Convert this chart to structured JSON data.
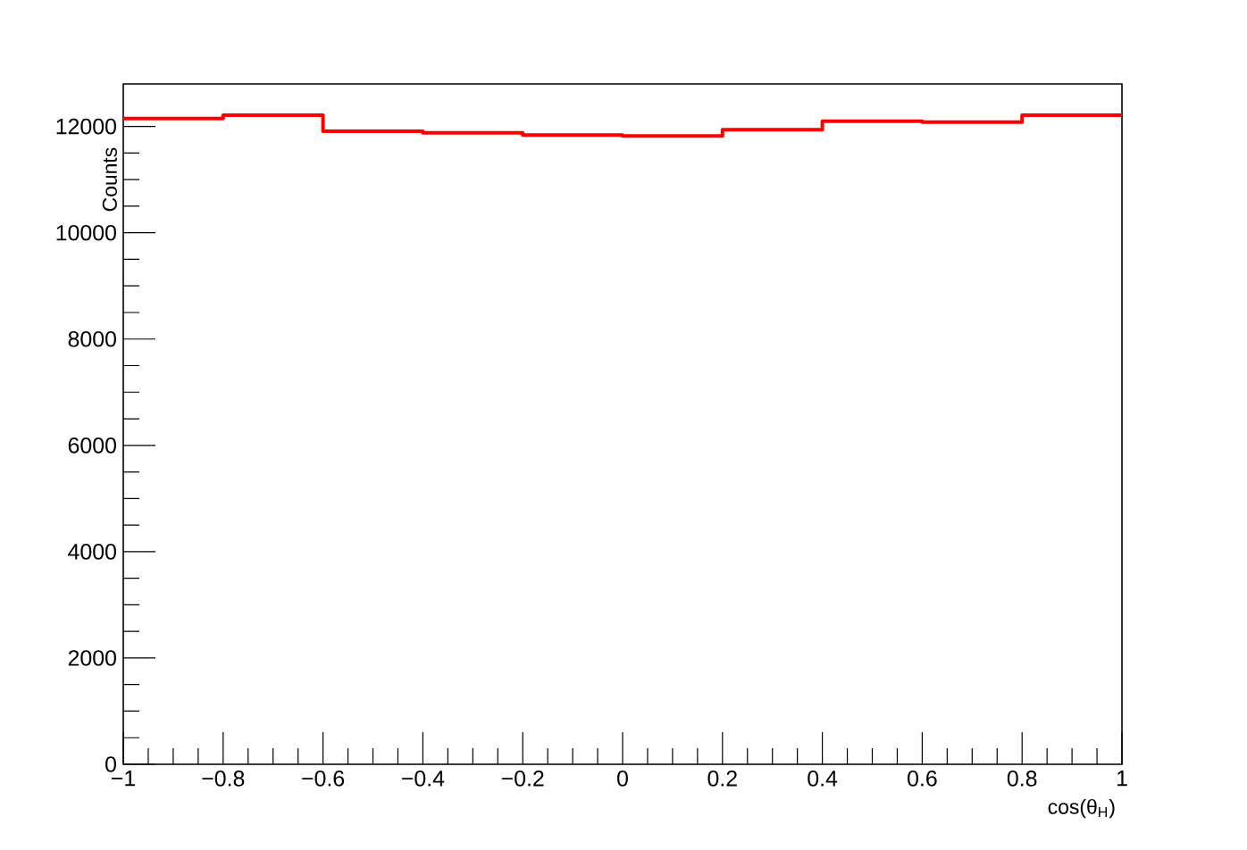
{
  "chart_data": {
    "type": "histogram",
    "xlabel": "cos(θ$_{H}$)",
    "ylabel": "Counts",
    "bins": [
      -1,
      -0.8,
      -0.6,
      -0.4,
      -0.2,
      0,
      0.2,
      0.4,
      0.6,
      0.8,
      1
    ],
    "values": [
      12150,
      12210,
      11910,
      11880,
      11840,
      11820,
      11940,
      12100,
      12080,
      12210
    ],
    "color": "#ff0000",
    "xlim": [
      -1,
      1
    ],
    "ylim": [
      0,
      12800
    ],
    "xticks": [
      {
        "value": -1,
        "label": "−1"
      },
      {
        "value": -0.8,
        "label": "−0.8"
      },
      {
        "value": -0.6,
        "label": "−0.6"
      },
      {
        "value": -0.4,
        "label": "−0.4"
      },
      {
        "value": -0.2,
        "label": "−0.2"
      },
      0,
      0.2,
      0.4,
      0.6,
      0.8,
      1
    ],
    "yticks": [
      0,
      2000,
      4000,
      6000,
      8000,
      10000,
      12000
    ],
    "grid": false
  }
}
